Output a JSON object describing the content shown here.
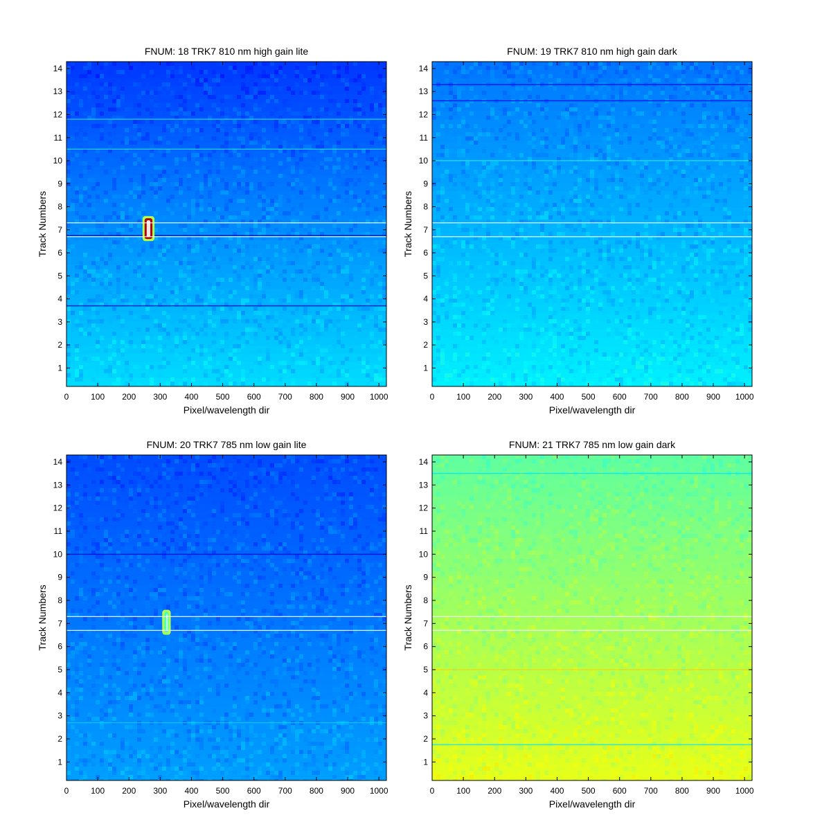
{
  "chart_data": [
    {
      "type": "heatmap",
      "title": "FNUM: 18 TRK7 810 nm high gain lite",
      "xlabel": "Pixel/wavelength dir",
      "ylabel": "Track Numbers",
      "xlim": [
        0,
        1024
      ],
      "ylim": [
        0.2,
        14.3
      ],
      "x_ticks": [
        0,
        100,
        200,
        300,
        400,
        500,
        600,
        700,
        800,
        900,
        1000
      ],
      "y_ticks": [
        1,
        2,
        3,
        4,
        5,
        6,
        7,
        8,
        9,
        10,
        11,
        12,
        13,
        14
      ],
      "colormap": "jet",
      "background_level": {
        "top": 0.18,
        "bottom": 0.34
      },
      "track_bounds": [
        6.7,
        7.3
      ],
      "hotspot": {
        "x": [
          250,
          275
        ],
        "y": [
          6.6,
          7.5
        ],
        "level": 0.95
      },
      "dark_lines": [
        3.7,
        6.75
      ],
      "bright_lines": [
        10.5,
        11.8
      ]
    },
    {
      "type": "heatmap",
      "title": "FNUM: 19 TRK7 810 nm high gain dark",
      "xlabel": "Pixel/wavelength dir",
      "ylabel": "Track Numbers",
      "xlim": [
        0,
        1024
      ],
      "ylim": [
        0.2,
        14.3
      ],
      "x_ticks": [
        0,
        100,
        200,
        300,
        400,
        500,
        600,
        700,
        800,
        900,
        1000
      ],
      "y_ticks": [
        1,
        2,
        3,
        4,
        5,
        6,
        7,
        8,
        9,
        10,
        11,
        12,
        13,
        14
      ],
      "colormap": "jet",
      "background_level": {
        "top": 0.24,
        "bottom": 0.36
      },
      "track_bounds": [
        6.7,
        7.3
      ],
      "dark_lines": [
        13.3,
        12.6
      ],
      "bright_lines": [
        10.0
      ]
    },
    {
      "type": "heatmap",
      "title": "FNUM: 20 TRK7 785 nm low gain lite",
      "xlabel": "Pixel/wavelength dir",
      "ylabel": "Track Numbers",
      "xlim": [
        0,
        1024
      ],
      "ylim": [
        0.2,
        14.3
      ],
      "x_ticks": [
        0,
        100,
        200,
        300,
        400,
        500,
        600,
        700,
        800,
        900,
        1000
      ],
      "y_ticks": [
        1,
        2,
        3,
        4,
        5,
        6,
        7,
        8,
        9,
        10,
        11,
        12,
        13,
        14
      ],
      "colormap": "jet",
      "background_level": {
        "top": 0.2,
        "bottom": 0.28
      },
      "track_bounds": [
        6.7,
        7.3
      ],
      "hotspot": {
        "x": [
          313,
          327
        ],
        "y": [
          6.6,
          7.5
        ],
        "level": 0.45
      },
      "dark_lines": [
        10.0
      ],
      "bright_lines": [
        2.7
      ]
    },
    {
      "type": "heatmap",
      "title": "FNUM: 21 TRK7 785 nm low gain dark",
      "xlabel": "Pixel/wavelength dir",
      "ylabel": "Track Numbers",
      "xlim": [
        0,
        1024
      ],
      "ylim": [
        0.2,
        14.3
      ],
      "x_ticks": [
        0,
        100,
        200,
        300,
        400,
        500,
        600,
        700,
        800,
        900,
        1000
      ],
      "y_ticks": [
        1,
        2,
        3,
        4,
        5,
        6,
        7,
        8,
        9,
        10,
        11,
        12,
        13,
        14
      ],
      "colormap": "jet",
      "background_level": {
        "top": 0.47,
        "bottom": 0.6
      },
      "track_bounds": [
        6.7,
        7.3
      ],
      "dark_lines": [
        13.5,
        1.75
      ],
      "bright_lines": [
        5.0
      ]
    }
  ]
}
